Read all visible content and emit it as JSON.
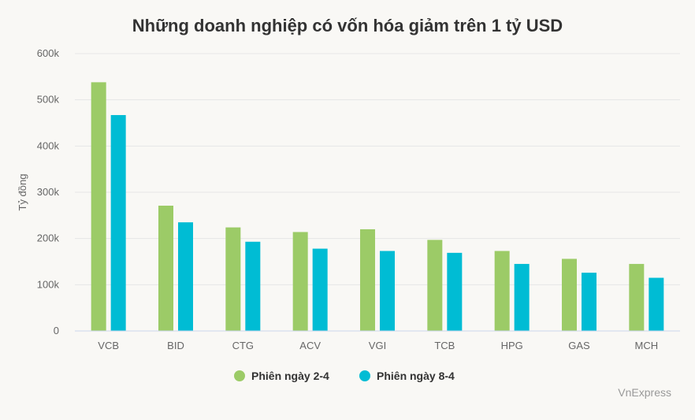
{
  "chart_data": {
    "type": "bar",
    "title": "Những doanh nghiệp có vốn hóa giảm trên 1 tỷ USD",
    "ylabel": "Tỷ đồng",
    "xlabel": "",
    "ylim": [
      0,
      600000
    ],
    "yticks": [
      0,
      100000,
      200000,
      300000,
      400000,
      500000,
      600000
    ],
    "ytick_labels": [
      "0",
      "100k",
      "200k",
      "300k",
      "400k",
      "500k",
      "600k"
    ],
    "categories": [
      "VCB",
      "BID",
      "CTG",
      "ACV",
      "VGI",
      "TCB",
      "HPG",
      "GAS",
      "MCH"
    ],
    "series": [
      {
        "name": "Phiên ngày 2-4",
        "color": "#9ccb67",
        "values": [
          538000,
          271000,
          224000,
          214000,
          220000,
          197000,
          173000,
          156000,
          145000
        ]
      },
      {
        "name": "Phiên ngày 8-4",
        "color": "#00bcd4",
        "values": [
          467000,
          235000,
          193000,
          178000,
          173000,
          169000,
          145000,
          126000,
          115000
        ]
      }
    ],
    "grid": true,
    "legend_position": "bottom-center",
    "credit": "VnExpress"
  }
}
